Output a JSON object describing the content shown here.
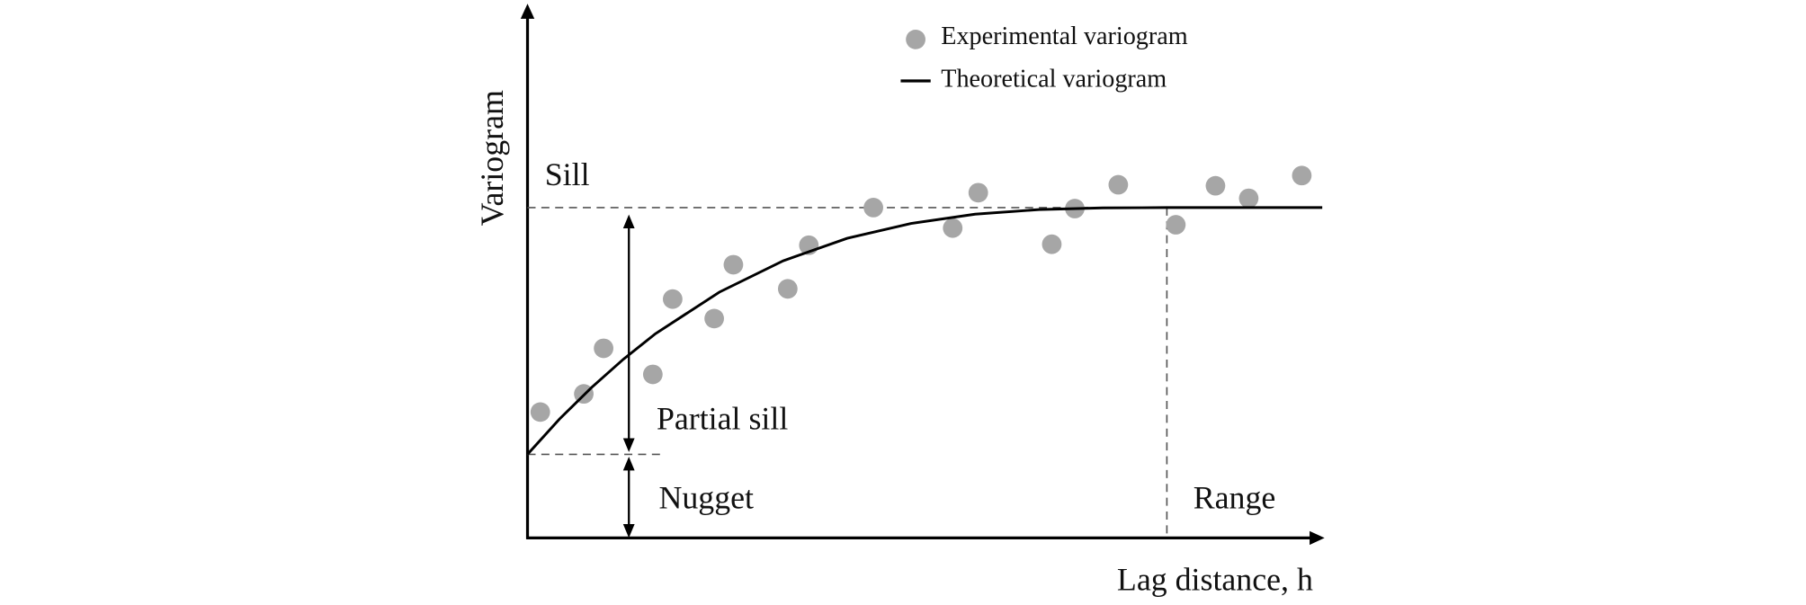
{
  "chart_data": {
    "type": "scatter",
    "xlabel": "Lag distance, h",
    "ylabel": "Variogram",
    "xlim": [
      0,
      1.243
    ],
    "ylim": [
      0,
      1.61
    ],
    "series": [
      {
        "name": "Experimental variogram",
        "type": "scatter",
        "color": "#a6a6a6",
        "x": [
          0.02,
          0.088,
          0.119,
          0.196,
          0.227,
          0.292,
          0.322,
          0.407,
          0.44,
          0.541,
          0.665,
          0.705,
          0.82,
          0.856,
          0.924,
          1.014,
          1.076,
          1.128,
          1.211
        ],
        "values": [
          0.381,
          0.436,
          0.574,
          0.495,
          0.723,
          0.664,
          0.827,
          0.754,
          0.886,
          1.0,
          0.938,
          1.045,
          0.889,
          0.997,
          1.069,
          0.948,
          1.066,
          1.028,
          1.097
        ]
      },
      {
        "name": "Theoretical variogram",
        "type": "line",
        "color": "#000000",
        "x": [
          0,
          0.05,
          0.1,
          0.15,
          0.2,
          0.3,
          0.4,
          0.5,
          0.6,
          0.7,
          0.8,
          0.9,
          1.0,
          1.243
        ],
        "values": [
          0.253,
          0.36,
          0.455,
          0.541,
          0.618,
          0.744,
          0.839,
          0.907,
          0.952,
          0.98,
          0.994,
          0.999,
          1.0,
          1.0
        ]
      }
    ],
    "reference_lines": [
      {
        "label": "Sill",
        "axis": "y",
        "value": 1
      },
      {
        "label": "Nugget",
        "axis": "y",
        "value": 0.253
      },
      {
        "label": "Range",
        "axis": "x",
        "value": 1
      }
    ],
    "annotations": [
      "Partial sill"
    ]
  }
}
